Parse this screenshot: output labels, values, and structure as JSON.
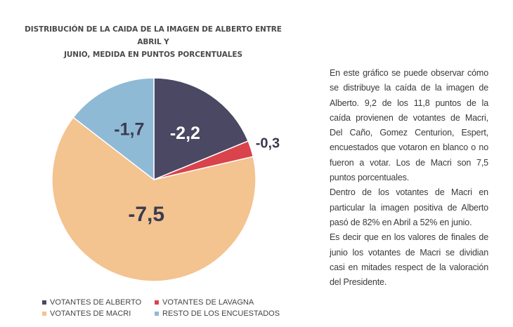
{
  "chart_data": {
    "type": "pie",
    "title_lines": [
      "DISTRIBUCIÓN DE LA CAIDA DE LA IMAGEN DE ALBERTO ENTRE ABRIL Y",
      "JUNIO, MEDIDA EN PUNTOS PORCENTUALES"
    ],
    "slices": [
      {
        "name": "VOTANTES DE ALBERTO",
        "value": -2.2,
        "label": "-2,2",
        "color": "#4a4862",
        "label_color": "#ffffff"
      },
      {
        "name": "VOTANTES DE LAVAGNA",
        "value": -0.3,
        "label": "-0,3",
        "color": "#d9434b",
        "label_color": "#3b3b4f"
      },
      {
        "name": "VOTANTES DE MACRI",
        "value": -7.5,
        "label": "-7,5",
        "color": "#f3c390",
        "label_color": "#3b3b4f"
      },
      {
        "name": "RESTO DE LOS ENCUESTADOS",
        "value": -1.7,
        "label": "-1,7",
        "color": "#8fbad6",
        "label_color": "#3b3b4f"
      }
    ],
    "legend_placement": "bottom"
  },
  "description": [
    "En este gráfico se puede observar cómo se distribuye la caída de la imagen de Alberto. 9,2 de los 11,8 puntos de la caída provienen de votantes de Macri, Del Caño, Gomez Centurion, Espert, encuestados que votaron en blanco o no fueron a votar. Los de Macri son 7,5 puntos porcentuales.",
    "Dentro de los votantes de Macri en particular la imagen positiva de Alberto pasó de 82% en Abril a 52% en junio.",
    "Es decir que en los valores de finales de junio los votantes de Macri se dividian casi en mitades respect de la valoración del Presidente."
  ]
}
